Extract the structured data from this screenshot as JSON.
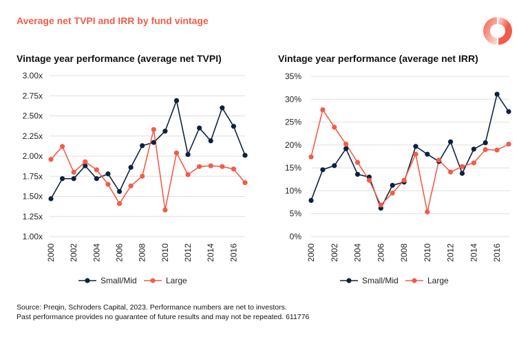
{
  "header": {
    "title": "Average net TVPI and IRR by fund vintage"
  },
  "footer": {
    "line1": "Source: Preqin, Schroders Capital, 2023. Performance numbers are net to investors.",
    "line2": "Past performance provides no guarantee of future results and may not be repeated. 611776"
  },
  "colors": {
    "small_mid": "#0d2140",
    "large": "#f25c48",
    "grid": "#dddddd"
  },
  "chart_data": [
    {
      "type": "line",
      "title": "Vintage year performance (average net TVPI)",
      "x": [
        2000,
        2001,
        2002,
        2003,
        2004,
        2005,
        2006,
        2007,
        2008,
        2009,
        2010,
        2011,
        2012,
        2013,
        2014,
        2015,
        2016,
        2017
      ],
      "x_tick_labels": [
        "2000",
        "2002",
        "2004",
        "2006",
        "2008",
        "2010",
        "2012",
        "2014",
        "2016"
      ],
      "y_tick_labels": [
        "1.00x",
        "1.25x",
        "1.50x",
        "1.75x",
        "2.00x",
        "2.25x",
        "2.50x",
        "2.75x",
        "3.00x"
      ],
      "ylim": [
        1.0,
        3.0
      ],
      "grid": true,
      "legend": "bottom",
      "series": [
        {
          "name": "Small/Mid",
          "values": [
            1.47,
            1.72,
            1.72,
            1.88,
            1.72,
            1.78,
            1.56,
            1.86,
            2.13,
            2.17,
            2.31,
            2.69,
            2.02,
            2.35,
            2.19,
            2.6,
            2.37,
            2.01
          ]
        },
        {
          "name": "Large",
          "values": [
            1.96,
            2.12,
            1.8,
            1.93,
            1.83,
            1.65,
            1.41,
            1.63,
            1.75,
            2.33,
            1.33,
            2.04,
            1.77,
            1.87,
            1.88,
            1.87,
            1.84,
            1.67
          ]
        }
      ]
    },
    {
      "type": "line",
      "title": "Vintage year performance (average net IRR)",
      "x": [
        2000,
        2001,
        2002,
        2003,
        2004,
        2005,
        2006,
        2007,
        2008,
        2009,
        2010,
        2011,
        2012,
        2013,
        2014,
        2015,
        2016,
        2017
      ],
      "x_tick_labels": [
        "2000",
        "2002",
        "2004",
        "2006",
        "2008",
        "2010",
        "2012",
        "2014",
        "2016"
      ],
      "y_tick_labels": [
        "0%",
        "5%",
        "10%",
        "15%",
        "20%",
        "25%",
        "30%",
        "35%"
      ],
      "ylim": [
        0,
        35
      ],
      "grid": true,
      "legend": "bottom",
      "series": [
        {
          "name": "Small/Mid",
          "values": [
            7.9,
            14.6,
            15.5,
            19.2,
            13.6,
            13.0,
            6.2,
            11.2,
            11.9,
            19.7,
            18.0,
            16.4,
            20.7,
            13.8,
            19.1,
            20.5,
            31.1,
            27.3
          ]
        },
        {
          "name": "Large",
          "values": [
            17.4,
            27.7,
            23.9,
            20.2,
            16.2,
            12.3,
            6.9,
            9.5,
            12.3,
            18.0,
            5.4,
            16.7,
            14.1,
            15.3,
            16.1,
            19.0,
            18.9,
            20.2
          ]
        }
      ]
    }
  ]
}
